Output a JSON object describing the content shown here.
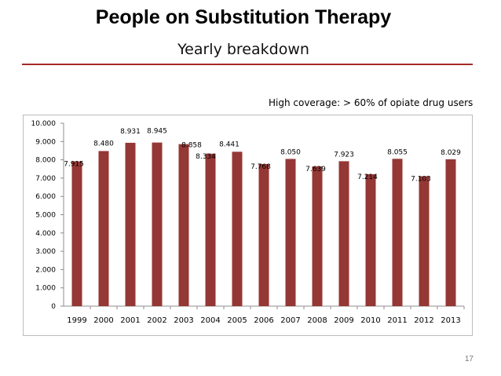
{
  "slide": {
    "title": "People on Substitution Therapy",
    "subtitle": "Yearly breakdown",
    "note": "High coverage: > 60% of opiate drug users",
    "page_number": "17"
  },
  "colors": {
    "bar": "#953735",
    "accent_rule": "#a52a2a"
  },
  "chart_data": {
    "type": "bar",
    "title": "",
    "xlabel": "",
    "ylabel": "",
    "ylim": [
      0,
      10000
    ],
    "yticks": [
      0,
      1000,
      2000,
      3000,
      4000,
      5000,
      6000,
      7000,
      8000,
      9000,
      10000
    ],
    "ytick_labels": [
      "0",
      "1.000",
      "2.000",
      "3.000",
      "4.000",
      "5.000",
      "6.000",
      "7.000",
      "8.000",
      "9.000",
      "10.000"
    ],
    "categories": [
      "1999",
      "2000",
      "2001",
      "2002",
      "2003",
      "2004",
      "2005",
      "2006",
      "2007",
      "2008",
      "2009",
      "2010",
      "2011",
      "2012",
      "2013"
    ],
    "values": [
      7915,
      8480,
      8931,
      8945,
      8858,
      8334,
      8441,
      7768,
      8050,
      7639,
      7923,
      7214,
      8055,
      7103,
      8029
    ],
    "data_labels": [
      "7.915",
      "8.480",
      "8.931",
      "8.945",
      "8.858",
      "8.334",
      "8.441",
      "7.768",
      "8.050",
      "7.639",
      "7.923",
      "7.214",
      "8.055",
      "7.103",
      "8.029"
    ],
    "grid": false,
    "legend": "none"
  }
}
